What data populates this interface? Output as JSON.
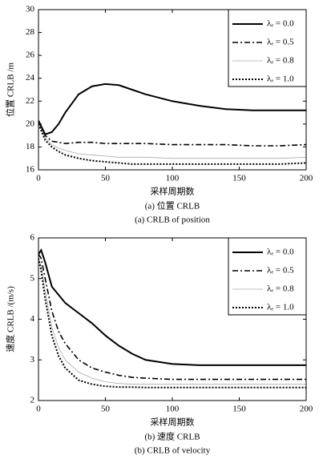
{
  "chart_data": [
    {
      "type": "line",
      "ylabel": "位置 CRLB /m",
      "xlabel": "采样周期数",
      "caption": "(a) 位置 CRLB",
      "caption_en": "(a) CRLB of position",
      "x": [
        0,
        5,
        10,
        15,
        20,
        30,
        40,
        50,
        60,
        70,
        80,
        100,
        120,
        140,
        160,
        180,
        200
      ],
      "xlim": [
        0,
        200
      ],
      "xticks": [
        0,
        50,
        100,
        150,
        200
      ],
      "ylim": [
        16,
        30
      ],
      "yticks": [
        16,
        18,
        20,
        22,
        24,
        26,
        28,
        30
      ],
      "legend": "upper right",
      "series": [
        {
          "name": "λₑ = 0.0",
          "color": "#000000",
          "linestyle": "solid",
          "values": [
            20.3,
            19.1,
            19.3,
            20.0,
            21.0,
            22.6,
            23.3,
            23.5,
            23.4,
            23.0,
            22.6,
            22.0,
            21.6,
            21.3,
            21.2,
            21.2,
            21.2
          ]
        },
        {
          "name": "λₑ = 0.5",
          "color": "#000000",
          "linestyle": "dashdot",
          "values": [
            20.2,
            19.0,
            18.5,
            18.4,
            18.3,
            18.4,
            18.4,
            18.3,
            18.3,
            18.3,
            18.3,
            18.2,
            18.2,
            18.2,
            18.1,
            18.1,
            18.2
          ]
        },
        {
          "name": "λₑ = 0.8",
          "color": "#aaaaaa",
          "linestyle": "thin",
          "values": [
            20.1,
            18.8,
            18.2,
            17.9,
            17.7,
            17.4,
            17.3,
            17.2,
            17.1,
            17.1,
            17.1,
            17.0,
            17.0,
            17.0,
            17.0,
            17.0,
            17.1
          ]
        },
        {
          "name": "λₑ = 1.0",
          "color": "#000000",
          "linestyle": "dotted",
          "values": [
            20.0,
            18.6,
            18.0,
            17.6,
            17.3,
            17.0,
            16.8,
            16.7,
            16.6,
            16.5,
            16.5,
            16.5,
            16.5,
            16.5,
            16.5,
            16.5,
            16.6
          ]
        }
      ]
    },
    {
      "type": "line",
      "ylabel": "速度 CRLB /(m/s)",
      "xlabel": "采样周期数",
      "caption": "(b) 速度 CRLB",
      "caption_en": "(b) CRLB of velocity",
      "x": [
        0,
        2,
        5,
        10,
        15,
        20,
        30,
        40,
        50,
        60,
        70,
        80,
        100,
        120,
        140,
        160,
        180,
        200
      ],
      "xlim": [
        0,
        200
      ],
      "xticks": [
        0,
        50,
        100,
        150,
        200
      ],
      "ylim": [
        2,
        6
      ],
      "yticks": [
        2,
        3,
        4,
        5,
        6
      ],
      "legend": "upper right",
      "series": [
        {
          "name": "λₑ = 0.0",
          "color": "#000000",
          "linestyle": "solid",
          "values": [
            5.6,
            5.7,
            5.4,
            4.8,
            4.6,
            4.4,
            4.15,
            3.9,
            3.6,
            3.35,
            3.15,
            3.0,
            2.9,
            2.87,
            2.87,
            2.87,
            2.87,
            2.87
          ]
        },
        {
          "name": "λₑ = 0.5",
          "color": "#000000",
          "linestyle": "dashdot",
          "values": [
            5.6,
            5.5,
            5.0,
            4.2,
            3.7,
            3.4,
            3.0,
            2.8,
            2.7,
            2.62,
            2.57,
            2.55,
            2.52,
            2.52,
            2.52,
            2.52,
            2.52,
            2.52
          ]
        },
        {
          "name": "λₑ = 0.8",
          "color": "#aaaaaa",
          "linestyle": "thin",
          "values": [
            5.5,
            5.3,
            4.7,
            3.8,
            3.3,
            3.0,
            2.7,
            2.55,
            2.46,
            2.42,
            2.4,
            2.4,
            2.4,
            2.4,
            2.4,
            2.4,
            2.4,
            2.4
          ]
        },
        {
          "name": "λₑ = 1.0",
          "color": "#000000",
          "linestyle": "dotted",
          "values": [
            5.5,
            5.2,
            4.5,
            3.6,
            3.1,
            2.8,
            2.5,
            2.4,
            2.35,
            2.33,
            2.33,
            2.32,
            2.32,
            2.32,
            2.32,
            2.32,
            2.32,
            2.32
          ]
        }
      ]
    }
  ]
}
